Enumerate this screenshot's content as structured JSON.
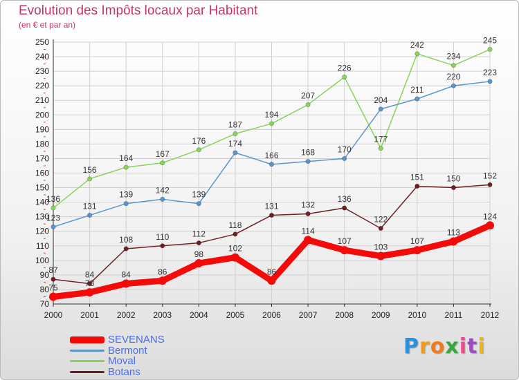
{
  "chart_data": {
    "type": "line",
    "title": "Evolution des Impôts locaux par Habitant",
    "subtitle": "(en € et par an)",
    "xlabel": "",
    "ylabel": "",
    "x": [
      "2000",
      "2001",
      "2002",
      "2003",
      "2004",
      "2005",
      "2006",
      "2007",
      "2008",
      "2009",
      "2010",
      "2011",
      "2012"
    ],
    "yticks": [
      "70",
      "80",
      "90",
      "100",
      "110",
      "120",
      "130",
      "140",
      "150",
      "160",
      "170",
      "180",
      "190",
      "200",
      "210",
      "220",
      "230",
      "240",
      "250"
    ],
    "ylim": [
      70,
      250
    ],
    "grid": true,
    "legend_position": "bottom-left",
    "series": [
      {
        "name": "Botans",
        "color": "#6e1f24",
        "values": [
          87,
          84,
          108,
          110,
          112,
          118,
          131,
          132,
          136,
          122,
          151,
          150,
          152
        ],
        "labels": [
          "87",
          "84",
          "108",
          "110",
          "112",
          "118",
          "131",
          "132",
          "136",
          "122",
          "151",
          "150",
          "152"
        ]
      },
      {
        "name": "Moval",
        "color": "#88d45a",
        "values": [
          136,
          156,
          164,
          167,
          176,
          187,
          194,
          207,
          226,
          177,
          242,
          234,
          245
        ],
        "labels": [
          "136",
          "156",
          "164",
          "167",
          "176",
          "187",
          "194",
          "207",
          "226",
          "177",
          "242",
          "234",
          "245"
        ]
      },
      {
        "name": "Bermont",
        "color": "#5b95cc",
        "values": [
          123,
          131,
          139,
          142,
          139,
          174,
          166,
          168,
          170,
          204,
          211,
          220,
          223
        ],
        "labels": [
          "123",
          "131",
          "139",
          "142",
          "139",
          "174",
          "166",
          "168",
          "170",
          "204",
          "211",
          "220",
          "223"
        ]
      },
      {
        "name": "SEVENANS",
        "color": "#f50a0a",
        "values": [
          75,
          78,
          84,
          86,
          98,
          102,
          86,
          114,
          107,
          103,
          107,
          113,
          124
        ],
        "labels": [
          "75",
          "78",
          "84",
          "86",
          "98",
          "102",
          "86",
          "114",
          "107",
          "103",
          "107",
          "113",
          "124"
        ]
      }
    ]
  },
  "legend": [
    {
      "label": "SEVENANS",
      "color": "#f50a0a"
    },
    {
      "label": "Bermont",
      "color": "#5b95cc"
    },
    {
      "label": "Moval",
      "color": "#88d45a"
    },
    {
      "label": "Botans",
      "color": "#6e1f24"
    }
  ],
  "brand": {
    "letters": [
      "P",
      "r",
      "o",
      "x",
      "i",
      "t",
      "i"
    ],
    "colors": [
      "#2e8fd6",
      "#f59a16",
      "#f07b1a",
      "#39a83c",
      "#e84c8c",
      "#9c4fc0",
      "#f0b419"
    ]
  }
}
